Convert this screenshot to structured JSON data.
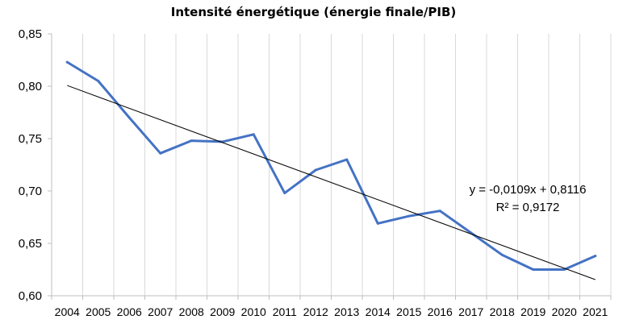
{
  "chart_data": {
    "type": "line",
    "title": "Intensité énergétique (énergie finale/PIB)",
    "categories": [
      "2004",
      "2005",
      "2006",
      "2007",
      "2008",
      "2009",
      "2010",
      "2011",
      "2012",
      "2013",
      "2014",
      "2015",
      "2016",
      "2017",
      "2018",
      "2019",
      "2020",
      "2021"
    ],
    "series": [
      {
        "values": [
          0.823,
          0.805,
          0.77,
          0.736,
          0.748,
          0.747,
          0.754,
          0.698,
          0.72,
          0.73,
          0.669,
          0.676,
          0.681,
          0.66,
          0.639,
          0.625,
          0.625,
          0.638
        ],
        "color": "#4472C4"
      }
    ],
    "trendline": {
      "type": "linear",
      "slope": -0.0109,
      "intercept": 0.8116,
      "color": "#000000"
    },
    "equation_label": "y = -0,0109x + 0,8116",
    "r2_label": "R² = 0,9172",
    "ylim": [
      0.6,
      0.85
    ],
    "yticks": [
      0.6,
      0.65,
      0.7,
      0.75,
      0.8,
      0.85
    ],
    "ytick_labels": [
      "0,60",
      "0,65",
      "0,70",
      "0,75",
      "0,80",
      "0,85"
    ],
    "xlabel": "",
    "ylabel": "",
    "grid": "vertical",
    "legend": "none"
  }
}
